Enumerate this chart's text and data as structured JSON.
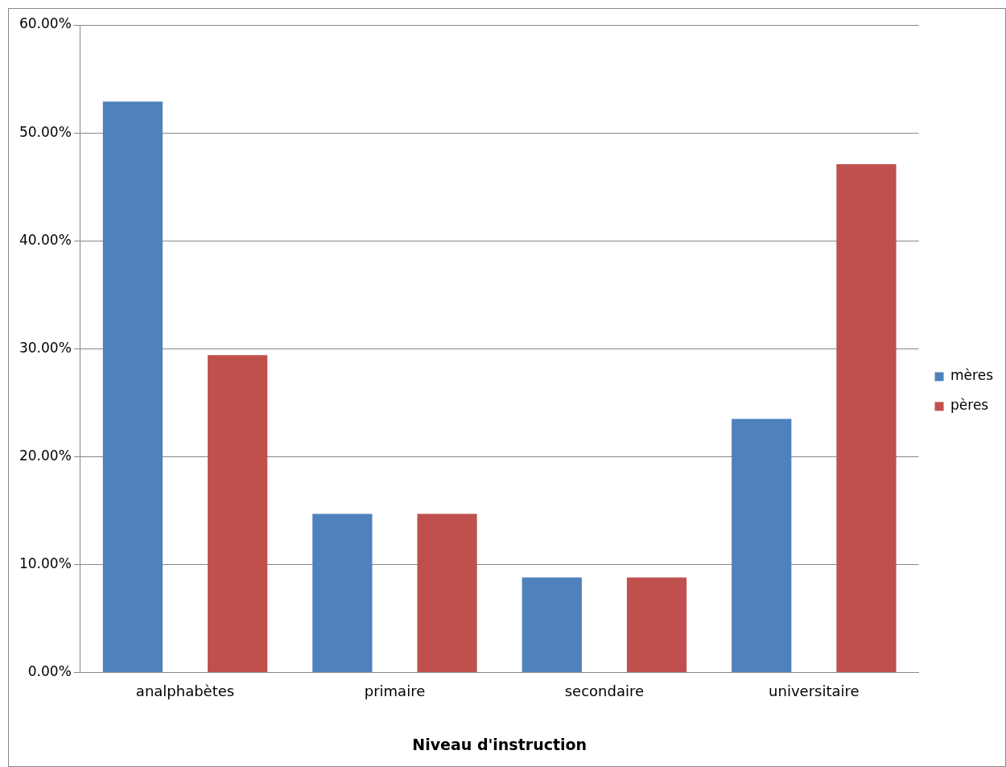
{
  "chart_data": {
    "type": "bar",
    "xlabel": "Niveau d'instruction",
    "categories": [
      "analphabètes",
      "primaire",
      "secondaire",
      "universitaire"
    ],
    "series": [
      {
        "name": "mères",
        "color": "#4f81bd",
        "values": [
          52.9,
          14.7,
          8.8,
          23.5
        ]
      },
      {
        "name": "pères",
        "color": "#c0504d",
        "values": [
          29.4,
          14.7,
          8.8,
          47.1
        ]
      }
    ],
    "ylim": [
      0,
      60
    ],
    "yticks": [
      {
        "value": 0,
        "label": "0.00%"
      },
      {
        "value": 10,
        "label": "10.00%"
      },
      {
        "value": 20,
        "label": "20.00%"
      },
      {
        "value": 30,
        "label": "30.00%"
      },
      {
        "value": 40,
        "label": "40.00%"
      },
      {
        "value": 50,
        "label": "50.00%"
      },
      {
        "value": 60,
        "label": "60.00%"
      }
    ],
    "grid": "y",
    "legend": "right"
  }
}
